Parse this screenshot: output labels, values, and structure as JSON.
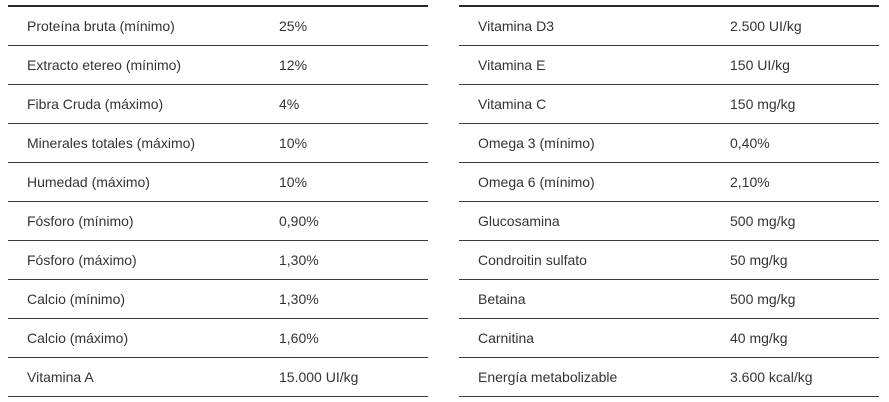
{
  "table": {
    "left": [
      {
        "label": "Proteína bruta (mínimo)",
        "value": "25%"
      },
      {
        "label": "Extracto etereo (mínimo)",
        "value": "12%"
      },
      {
        "label": "Fibra Cruda (máximo)",
        "value": "4%"
      },
      {
        "label": "Minerales totales (máximo)",
        "value": "10%"
      },
      {
        "label": "Humedad (máximo)",
        "value": "10%"
      },
      {
        "label": "Fósforo (mínimo)",
        "value": "0,90%"
      },
      {
        "label": "Fósforo (máximo)",
        "value": "1,30%"
      },
      {
        "label": "Calcio (mínimo)",
        "value": "1,30%"
      },
      {
        "label": "Calcio (máximo)",
        "value": "1,60%"
      },
      {
        "label": "Vitamina A",
        "value": "15.000 UI/kg"
      }
    ],
    "right": [
      {
        "label": "Vitamina D3",
        "value": "2.500 UI/kg"
      },
      {
        "label": "Vitamina E",
        "value": "150 UI/kg"
      },
      {
        "label": "Vitamina C",
        "value": "150 mg/kg"
      },
      {
        "label": "Omega 3 (mínimo)",
        "value": "0,40%"
      },
      {
        "label": "Omega 6 (mínimo)",
        "value": "2,10%"
      },
      {
        "label": "Glucosamina",
        "value": "500 mg/kg"
      },
      {
        "label": "Condroitin sulfato",
        "value": "50 mg/kg"
      },
      {
        "label": "Betaina",
        "value": "500 mg/kg"
      },
      {
        "label": "Carnitina",
        "value": "40 mg/kg"
      },
      {
        "label": "Energía metabolizable",
        "value": "3.600 kcal/kg"
      }
    ]
  }
}
